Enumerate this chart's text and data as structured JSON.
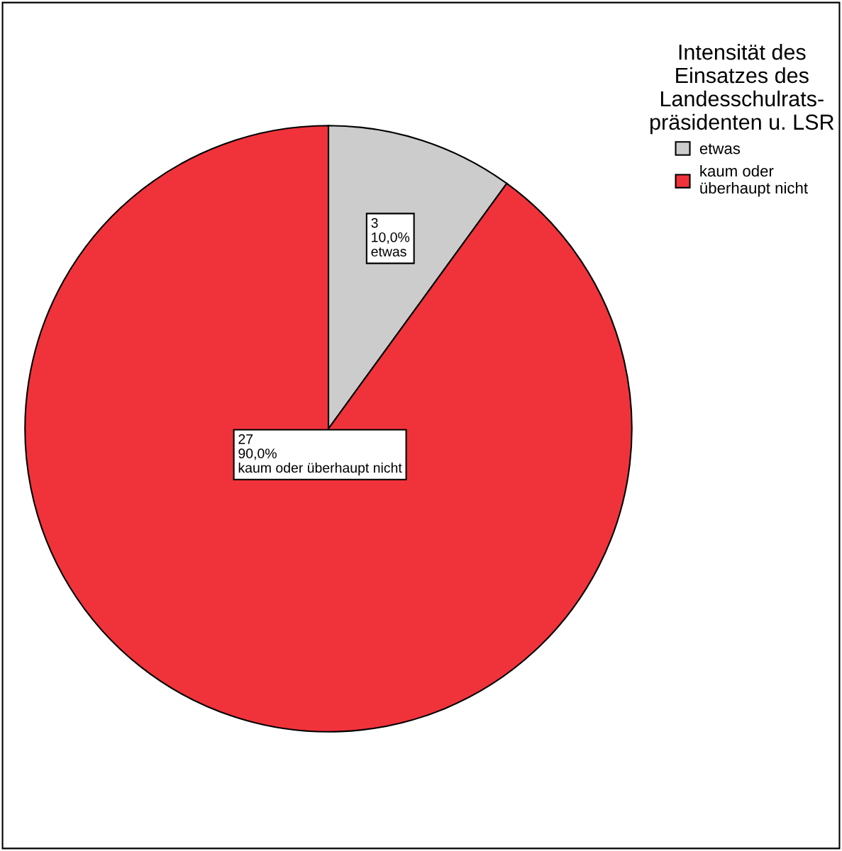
{
  "chart_data": {
    "type": "pie",
    "categories": [
      "etwas",
      "kaum oder überhaupt nicht"
    ],
    "values": [
      3,
      27
    ],
    "colors": [
      "#cccccc",
      "#f0333b"
    ],
    "value_labels": [
      "3\n10,0%\netwas",
      "27\n90,0%\nkaum oder überhaupt nicht"
    ],
    "legend_title": "Intensität des\nEinsatzes des\nLandesschulrats-\npräsidenten u. LSR",
    "legend": "top right"
  }
}
